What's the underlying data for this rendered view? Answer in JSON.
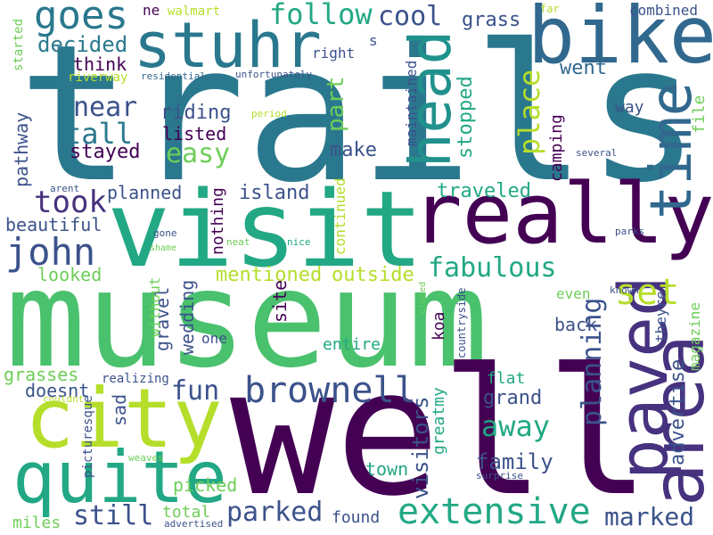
{
  "words": [
    {
      "text": "trails",
      "color": "#2a788e"
    },
    {
      "text": "museum",
      "color": "#4ac16d"
    },
    {
      "text": "well",
      "color": "#440154"
    },
    {
      "text": "visit",
      "color": "#22a884"
    },
    {
      "text": "really",
      "color": "#440154"
    },
    {
      "text": "city",
      "color": "#b5de2b"
    },
    {
      "text": "bike",
      "color": "#31688e"
    },
    {
      "text": "stuhr",
      "color": "#2a788e"
    },
    {
      "text": "quite",
      "color": "#22a884"
    },
    {
      "text": "paved",
      "color": "#46327e"
    },
    {
      "text": "area",
      "color": "#46327e"
    },
    {
      "text": "head",
      "color": "#21918c"
    },
    {
      "text": "time",
      "color": "#31688e"
    },
    {
      "text": "extensive",
      "color": "#22a884"
    },
    {
      "text": "brownell",
      "color": "#3b528b"
    },
    {
      "text": "goes",
      "color": "#2a788e"
    },
    {
      "text": "john",
      "color": "#3b528b"
    },
    {
      "text": "follow",
      "color": "#22a884"
    },
    {
      "text": "took",
      "color": "#46327e"
    },
    {
      "text": "set",
      "color": "#b5de2b"
    },
    {
      "text": "fabulous",
      "color": "#22a884"
    },
    {
      "text": "easy",
      "color": "#6ece58"
    },
    {
      "text": "tall",
      "color": "#2a788e"
    },
    {
      "text": "near",
      "color": "#3b528b"
    },
    {
      "text": "cool",
      "color": "#3b528b"
    },
    {
      "text": "parked",
      "color": "#3b528b"
    },
    {
      "text": "away",
      "color": "#22a884"
    },
    {
      "text": "fun",
      "color": "#3b528b"
    },
    {
      "text": "marked",
      "color": "#3b528b"
    },
    {
      "text": "still",
      "color": "#3b528b"
    },
    {
      "text": "place",
      "color": "#b5de2b"
    },
    {
      "text": "planning",
      "color": "#3b528b"
    },
    {
      "text": "family",
      "color": "#3b528b"
    },
    {
      "text": "advertise",
      "color": "#3b528b"
    },
    {
      "text": "decided",
      "color": "#2a788e"
    },
    {
      "text": "part",
      "color": "#6ece58"
    },
    {
      "text": "visitors",
      "color": "#3b528b"
    },
    {
      "text": "went",
      "color": "#31688e"
    },
    {
      "text": "grass",
      "color": "#3b528b"
    },
    {
      "text": "grand",
      "color": "#3b528b"
    },
    {
      "text": "stopped",
      "color": "#22a884"
    },
    {
      "text": "traveled",
      "color": "#22a884"
    },
    {
      "text": "mentioned",
      "color": "#b5de2b"
    },
    {
      "text": "outside",
      "color": "#b5de2b"
    },
    {
      "text": "island",
      "color": "#3b528b"
    },
    {
      "text": "riding",
      "color": "#3b528b"
    },
    {
      "text": "listed",
      "color": "#440154"
    },
    {
      "text": "stayed",
      "color": "#440154"
    },
    {
      "text": "make",
      "color": "#3b528b"
    },
    {
      "text": "planned",
      "color": "#3b528b"
    },
    {
      "text": "think",
      "color": "#440154"
    },
    {
      "text": "pathway",
      "color": "#3b528b"
    },
    {
      "text": "beautiful",
      "color": "#3b528b"
    },
    {
      "text": "looked",
      "color": "#6ece58"
    },
    {
      "text": "grasses",
      "color": "#6ece58"
    },
    {
      "text": "doesnt",
      "color": "#3b528b"
    },
    {
      "text": "sad",
      "color": "#3b528b"
    },
    {
      "text": "gravel",
      "color": "#3b528b"
    },
    {
      "text": "wedding",
      "color": "#3b528b"
    },
    {
      "text": "site",
      "color": "#440154"
    },
    {
      "text": "entire",
      "color": "#22a884"
    },
    {
      "text": "back",
      "color": "#3b528b"
    },
    {
      "text": "town",
      "color": "#22a884"
    },
    {
      "text": "picked",
      "color": "#6ece58"
    },
    {
      "text": "total",
      "color": "#6ece58"
    },
    {
      "text": "found",
      "color": "#3b528b"
    },
    {
      "text": "miles",
      "color": "#6ece58"
    },
    {
      "text": "camping",
      "color": "#440154"
    },
    {
      "text": "file",
      "color": "#6ece58"
    },
    {
      "text": "way",
      "color": "#3b528b"
    },
    {
      "text": "nothing",
      "color": "#440154"
    },
    {
      "text": "continued",
      "color": "#b5de2b"
    },
    {
      "text": "maintained",
      "color": "#3b528b"
    },
    {
      "text": "koa",
      "color": "#440154"
    },
    {
      "text": "one",
      "color": "#3b528b"
    },
    {
      "text": "greatmy",
      "color": "#22a884"
    },
    {
      "text": "flat",
      "color": "#22a884"
    },
    {
      "text": "magazine",
      "color": "#6ece58"
    },
    {
      "text": "theyre",
      "color": "#3b528b"
    },
    {
      "text": "combined",
      "color": "#3b528b"
    },
    {
      "text": "even",
      "color": "#6ece58"
    },
    {
      "text": "right",
      "color": "#3b528b"
    },
    {
      "text": "s",
      "color": "#3b528b"
    },
    {
      "text": "ne",
      "color": "#440154"
    },
    {
      "text": "walmart",
      "color": "#b5de2b"
    },
    {
      "text": "far",
      "color": "#b5de2b"
    },
    {
      "text": "started",
      "color": "#6ece58"
    },
    {
      "text": "riverway",
      "color": "#b5de2b"
    },
    {
      "text": "residential",
      "color": "#31688e"
    },
    {
      "text": "unfortunately",
      "color": "#3b528b"
    },
    {
      "text": "period",
      "color": "#b5de2b"
    },
    {
      "text": "several",
      "color": "#3b528b"
    },
    {
      "text": "arent",
      "color": "#3b528b"
    },
    {
      "text": "gone",
      "color": "#3b528b"
    },
    {
      "text": "shame",
      "color": "#6ece58"
    },
    {
      "text": "neat",
      "color": "#6ece58"
    },
    {
      "text": "nice",
      "color": "#22a884"
    },
    {
      "text": "parks",
      "color": "#3b528b"
    },
    {
      "text": "closed",
      "color": "#6ece58"
    },
    {
      "text": "known",
      "color": "#3b528b"
    },
    {
      "text": "without",
      "color": "#6ece58"
    },
    {
      "text": "realizing",
      "color": "#3b528b"
    },
    {
      "text": "picturesque",
      "color": "#3b528b"
    },
    {
      "text": "countryside",
      "color": "#3b528b"
    },
    {
      "text": "couldnt",
      "color": "#b5de2b"
    },
    {
      "text": "weaves",
      "color": "#6ece58"
    },
    {
      "text": "surprise",
      "color": "#3b528b"
    },
    {
      "text": "advertised",
      "color": "#3b528b"
    }
  ]
}
